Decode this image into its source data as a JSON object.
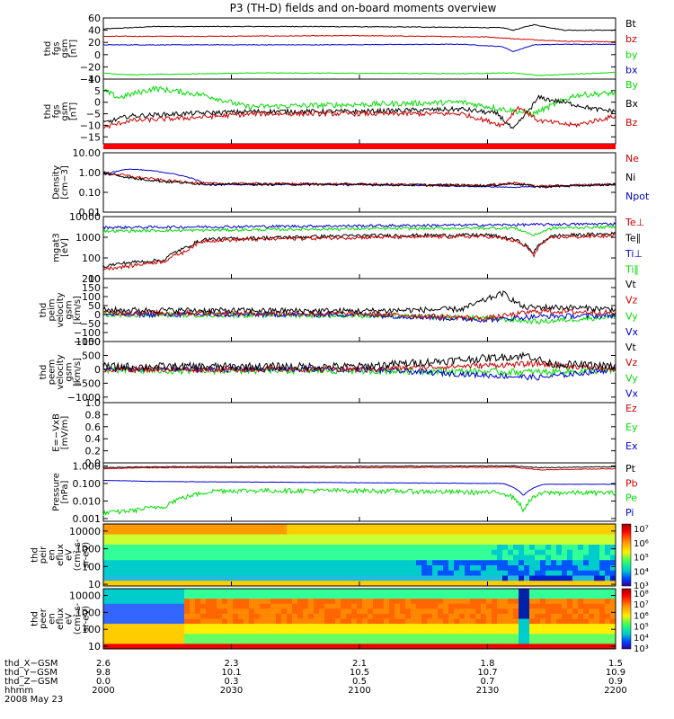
{
  "title": "P3 (TH-D) fields and on-board moments overview",
  "colors": {
    "black": "#000000",
    "red": "#cc0000",
    "blue": "#0000cc",
    "green": "#00dd00",
    "bar_red": "#ff0000"
  },
  "panels": [
    {
      "id": "p1",
      "ylabel": [
        "thd",
        "fgs",
        "gsm",
        "[nT]"
      ],
      "scale": "linear",
      "ylim": [
        -40,
        60
      ],
      "ticks": [
        {
          "v": 60,
          "t": "60"
        },
        {
          "v": 40,
          "t": "40"
        },
        {
          "v": 20,
          "t": "20"
        },
        {
          "v": 0,
          "t": "0"
        },
        {
          "v": -20,
          "t": "−20"
        },
        {
          "v": -40,
          "t": "−40"
        }
      ],
      "legend": [
        {
          "t": "Bt",
          "c": "black"
        },
        {
          "t": "bz",
          "c": "red"
        },
        {
          "t": "by",
          "c": "green"
        },
        {
          "t": "bx",
          "c": "blue"
        }
      ]
    },
    {
      "id": "p2",
      "ylabel": [
        "thd",
        "fgs",
        "gsm",
        "[nT]"
      ],
      "scale": "linear",
      "ylim": [
        -18,
        10
      ],
      "ticks": [
        {
          "v": 10,
          "t": "10"
        },
        {
          "v": 5,
          "t": "5"
        },
        {
          "v": 0,
          "t": "0"
        },
        {
          "v": -5,
          "t": "−5"
        },
        {
          "v": -10,
          "t": "−10"
        },
        {
          "v": -15,
          "t": "−15"
        }
      ],
      "legend": [
        {
          "t": "By",
          "c": "green"
        },
        {
          "t": "Bx",
          "c": "black"
        },
        {
          "t": "Bz",
          "c": "red"
        }
      ]
    },
    {
      "id": "p3",
      "ylabel": [
        "Density",
        "[cm−3]"
      ],
      "scale": "log",
      "ylim": [
        0.01,
        10
      ],
      "ticks": [
        {
          "v": 10,
          "t": "10.00"
        },
        {
          "v": 1,
          "t": "1.00"
        },
        {
          "v": 0.1,
          "t": "0.10"
        },
        {
          "v": 0.01,
          "t": "0.01"
        }
      ],
      "legend": [
        {
          "t": "Ne",
          "c": "red"
        },
        {
          "t": "Ni",
          "c": "black"
        },
        {
          "t": "Npot",
          "c": "blue"
        }
      ]
    },
    {
      "id": "p4",
      "ylabel": [
        "mgat3",
        "[eV]"
      ],
      "scale": "log",
      "ylim": [
        10,
        10000
      ],
      "ticks": [
        {
          "v": 10000,
          "t": "10000"
        },
        {
          "v": 1000,
          "t": "1000"
        },
        {
          "v": 100,
          "t": "100"
        },
        {
          "v": 10,
          "t": "10"
        }
      ],
      "legend": [
        {
          "t": "Te⊥",
          "c": "red"
        },
        {
          "t": "Te∥",
          "c": "black"
        },
        {
          "t": "Ti⊥",
          "c": "blue"
        },
        {
          "t": "Ti∥",
          "c": "green"
        }
      ]
    },
    {
      "id": "p5",
      "ylabel": [
        "thd",
        "peim",
        "velocity",
        "gsm",
        "[km/s]"
      ],
      "scale": "linear",
      "ylim": [
        -150,
        200
      ],
      "ticks": [
        {
          "v": 200,
          "t": "200"
        },
        {
          "v": 150,
          "t": "150"
        },
        {
          "v": 100,
          "t": "100"
        },
        {
          "v": 50,
          "t": "50"
        },
        {
          "v": 0,
          "t": "0"
        },
        {
          "v": -50,
          "t": "−50"
        },
        {
          "v": -100,
          "t": "−100"
        },
        {
          "v": -150,
          "t": "−150"
        }
      ],
      "legend": [
        {
          "t": "Vt",
          "c": "black"
        },
        {
          "t": "Vz",
          "c": "red"
        },
        {
          "t": "Vy",
          "c": "green"
        },
        {
          "t": "Vx",
          "c": "blue"
        }
      ]
    },
    {
      "id": "p6",
      "ylabel": [
        "thd",
        "peem",
        "velocity",
        "gsm",
        "[km/s]"
      ],
      "scale": "linear",
      "ylim": [
        -1200,
        1000
      ],
      "ticks": [
        {
          "v": 1000,
          "t": "1000"
        },
        {
          "v": 500,
          "t": "500"
        },
        {
          "v": 0,
          "t": "0"
        },
        {
          "v": -500,
          "t": "−500"
        },
        {
          "v": -1000,
          "t": "−1000"
        }
      ],
      "legend": [
        {
          "t": "Vt",
          "c": "black"
        },
        {
          "t": "Vz",
          "c": "red"
        },
        {
          "t": "Vy",
          "c": "green"
        },
        {
          "t": "Vx",
          "c": "blue"
        }
      ]
    },
    {
      "id": "p7",
      "ylabel": [
        "E=−VxB",
        "[mV/m]"
      ],
      "scale": "linear",
      "ylim": [
        0,
        1
      ],
      "ticks": [
        {
          "v": 1,
          "t": "1.0"
        },
        {
          "v": 0.8,
          "t": "0.8"
        },
        {
          "v": 0.6,
          "t": "0.6"
        },
        {
          "v": 0.4,
          "t": "0.4"
        },
        {
          "v": 0.2,
          "t": "0.2"
        },
        {
          "v": 0,
          "t": "0.0"
        }
      ],
      "legend": [
        {
          "t": "Ez",
          "c": "red"
        },
        {
          "t": "Ey",
          "c": "green"
        },
        {
          "t": "Ex",
          "c": "blue"
        }
      ]
    },
    {
      "id": "p8",
      "ylabel": [
        "Pressure",
        "[nPa]"
      ],
      "scale": "log",
      "ylim": [
        0.0007,
        1.5
      ],
      "ticks": [
        {
          "v": 1,
          "t": "1.000"
        },
        {
          "v": 0.1,
          "t": "0.100"
        },
        {
          "v": 0.01,
          "t": "0.010"
        },
        {
          "v": 0.001,
          "t": "0.001"
        }
      ],
      "legend": [
        {
          "t": "Pt",
          "c": "black"
        },
        {
          "t": "Pb",
          "c": "red"
        },
        {
          "t": "Pe",
          "c": "green"
        },
        {
          "t": "Pi",
          "c": "blue"
        }
      ]
    },
    {
      "id": "p9",
      "ylabel": [
        "thd",
        "peir",
        "en",
        "eflux",
        "eV",
        "(cm²-s-",
        "sr-eV)"
      ],
      "scale": "log",
      "ylim": [
        8,
        25000
      ],
      "ticks": [
        {
          "v": 10000,
          "t": "10000"
        },
        {
          "v": 1000,
          "t": "1000"
        },
        {
          "v": 100,
          "t": "100"
        },
        {
          "v": 10,
          "t": "10"
        }
      ],
      "colorbar": [
        "10⁷",
        "10⁶",
        "10⁵",
        "10⁴",
        "10³"
      ]
    },
    {
      "id": "p10",
      "ylabel": [
        "thd",
        "peer",
        "en",
        "eflux",
        "eV",
        "(cm²-s-",
        "sr-eV)"
      ],
      "scale": "log",
      "ylim": [
        7,
        25000
      ],
      "ticks": [
        {
          "v": 10000,
          "t": "10000"
        },
        {
          "v": 1000,
          "t": "1000"
        },
        {
          "v": 100,
          "t": "100"
        },
        {
          "v": 10,
          "t": "10"
        }
      ],
      "colorbar": [
        "10⁸",
        "10⁷",
        "10⁶",
        "10⁵",
        "10⁴",
        "10³"
      ]
    }
  ],
  "footer": {
    "row_labels": [
      "thd_X−GSM",
      "thd_Y−GSM",
      "thd_Z−GSM",
      "hhmm",
      "2008 May 23"
    ],
    "columns": [
      {
        "x": "2.6",
        "y": "9.8",
        "z": "0.0",
        "t": "2000"
      },
      {
        "x": "2.3",
        "y": "10.1",
        "z": "0.3",
        "t": "2030"
      },
      {
        "x": "2.1",
        "y": "10.5",
        "z": "0.5",
        "t": "2100"
      },
      {
        "x": "1.8",
        "y": "10.7",
        "z": "0.7",
        "t": "2130"
      },
      {
        "x": "1.5",
        "y": "10.9",
        "z": "0.9",
        "t": "2200"
      }
    ]
  },
  "chart_data": {
    "type": "line",
    "title": "P3 (TH-D) fields and on-board moments overview",
    "x": [
      "2000",
      "2030",
      "2100",
      "2130",
      "2200"
    ],
    "xlabel": "hhmm",
    "date": "2008 May 23",
    "series": [
      {
        "name": "Bt",
        "values": [
          47,
          45,
          46,
          44,
          40
        ]
      },
      {
        "name": "bz",
        "values": [
          32,
          30,
          31,
          24,
          22
        ]
      },
      {
        "name": "bx",
        "values": [
          18,
          17,
          17,
          10,
          16
        ]
      },
      {
        "name": "by",
        "values": [
          -31,
          -30,
          -31,
          -31,
          -31
        ]
      },
      {
        "name": "By",
        "values": [
          4,
          0,
          -2,
          -4,
          2
        ]
      },
      {
        "name": "Bx",
        "values": [
          -7,
          -5,
          -4,
          -3,
          -3
        ]
      },
      {
        "name": "Bz",
        "values": [
          -9,
          -6,
          -5,
          -5,
          -6
        ]
      },
      {
        "name": "Ni",
        "values": [
          1.0,
          0.25,
          0.25,
          0.2,
          0.25
        ]
      },
      {
        "name": "Te⊥",
        "values": [
          50,
          1000,
          1200,
          1200,
          1300
        ]
      },
      {
        "name": "Ti⊥",
        "values": [
          3000,
          3500,
          3800,
          4000,
          4500
        ]
      },
      {
        "name": "Vt",
        "values": [
          25,
          20,
          25,
          35,
          30
        ]
      },
      {
        "name": "Pt",
        "values": [
          0.8,
          0.9,
          0.95,
          1.0,
          0.9
        ]
      },
      {
        "name": "Pi",
        "values": [
          0.15,
          0.13,
          0.11,
          0.1,
          0.09
        ]
      },
      {
        "name": "Pe",
        "values": [
          0.003,
          0.04,
          0.04,
          0.03,
          0.03
        ]
      }
    ]
  }
}
